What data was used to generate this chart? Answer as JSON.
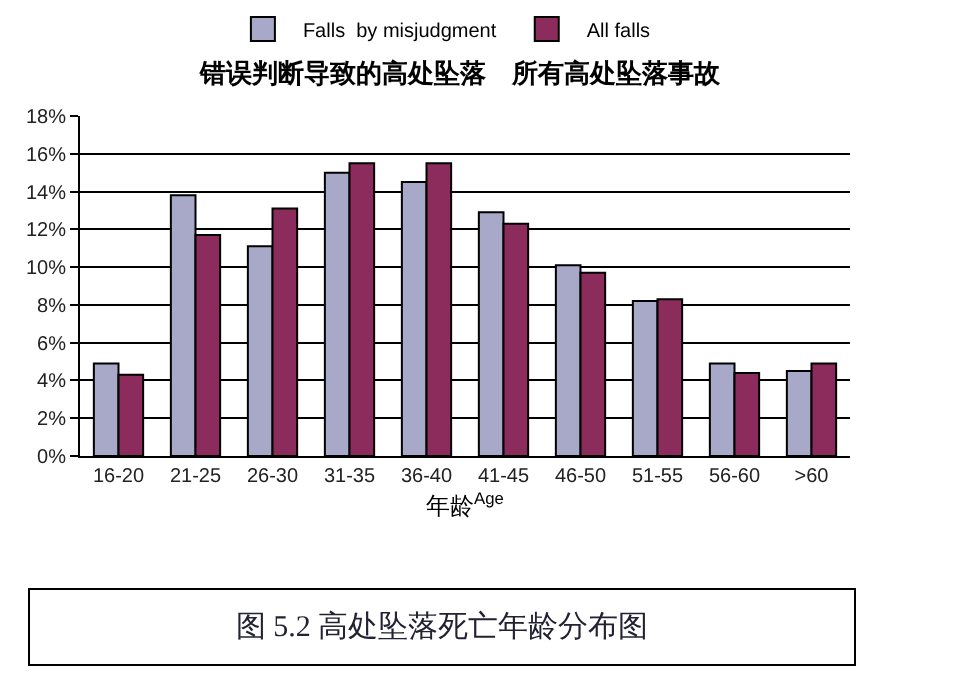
{
  "chart_data": {
    "type": "bar",
    "title": "错误判断导致的高处坠落　所有高处坠落事故",
    "xlabel": "年龄$^{Age}$",
    "categories": [
      "16-20",
      "21-25",
      "26-30",
      "31-35",
      "36-40",
      "41-45",
      "46-50",
      "51-55",
      "56-60",
      ">60"
    ],
    "series": [
      {
        "name": "Falls  by misjudgment",
        "color": "#a8a8c8",
        "values": [
          4.9,
          13.8,
          11.1,
          15.0,
          14.5,
          12.9,
          10.1,
          8.2,
          4.9,
          4.5
        ]
      },
      {
        "name": "All falls",
        "color": "#8c2c5c",
        "values": [
          4.3,
          11.7,
          13.1,
          15.5,
          15.5,
          12.3,
          9.7,
          8.3,
          4.4,
          4.9
        ]
      }
    ],
    "ylim": [
      0,
      18
    ],
    "yticks": [
      {
        "value": 0,
        "label": "0%"
      },
      {
        "value": 2,
        "label": "2%"
      },
      {
        "value": 4,
        "label": "4%"
      },
      {
        "value": 6,
        "label": "6%"
      },
      {
        "value": 8,
        "label": "8%"
      },
      {
        "value": 10,
        "label": "10%"
      },
      {
        "value": 12,
        "label": "12%"
      },
      {
        "value": 14,
        "label": "14%"
      },
      {
        "value": 16,
        "label": "16%"
      },
      {
        "value": 18,
        "label": "18%"
      }
    ],
    "grid": "y",
    "legend": "top",
    "annotations": [
      "图 5.2 高处坠落死亡年龄分布图"
    ]
  }
}
